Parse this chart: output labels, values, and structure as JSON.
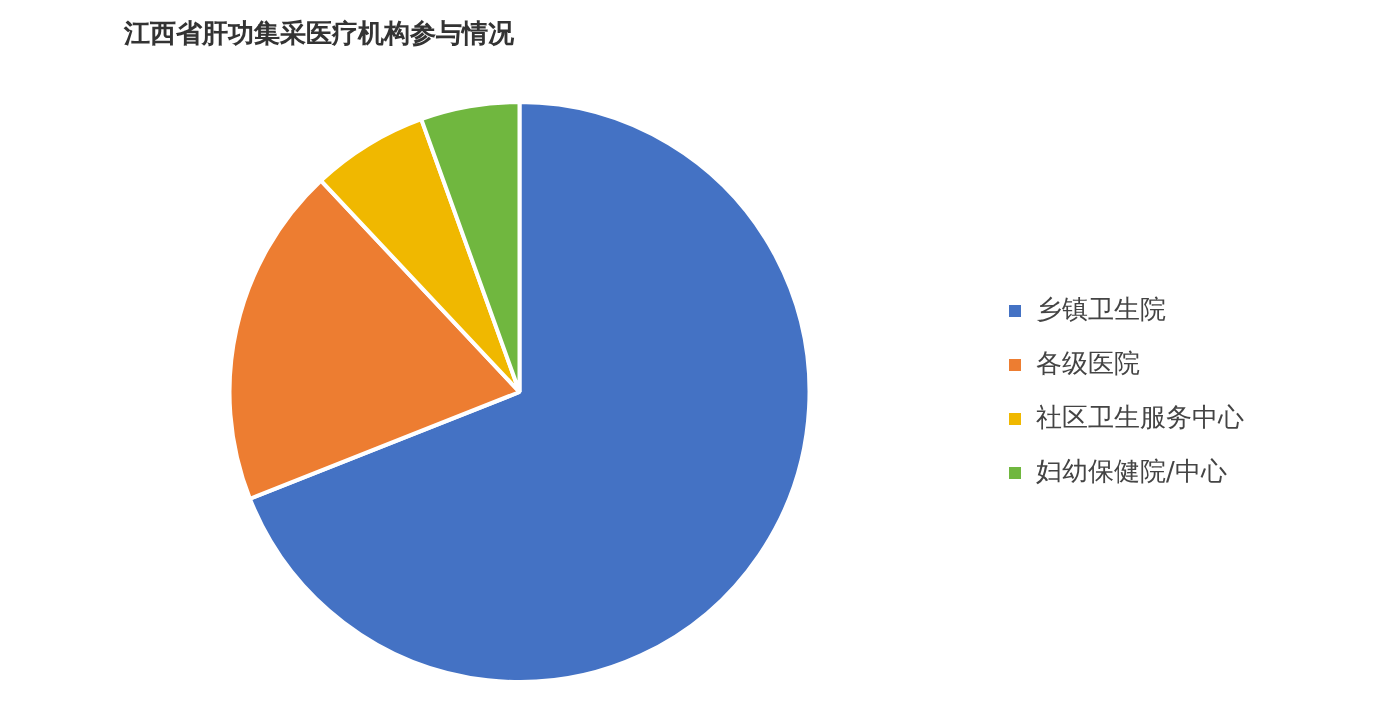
{
  "chart_data": {
    "type": "pie",
    "title": "江西省肝功集采医疗机构参与情况",
    "categories": [
      "乡镇卫生院",
      "各级医院",
      "社区卫生服务中心",
      "妇幼保健院/中心"
    ],
    "values": [
      69,
      19,
      6.5,
      5.5
    ],
    "colors": [
      "#4472c4",
      "#ed7d31",
      "#f0b800",
      "#70b73f"
    ],
    "legend": "right"
  }
}
